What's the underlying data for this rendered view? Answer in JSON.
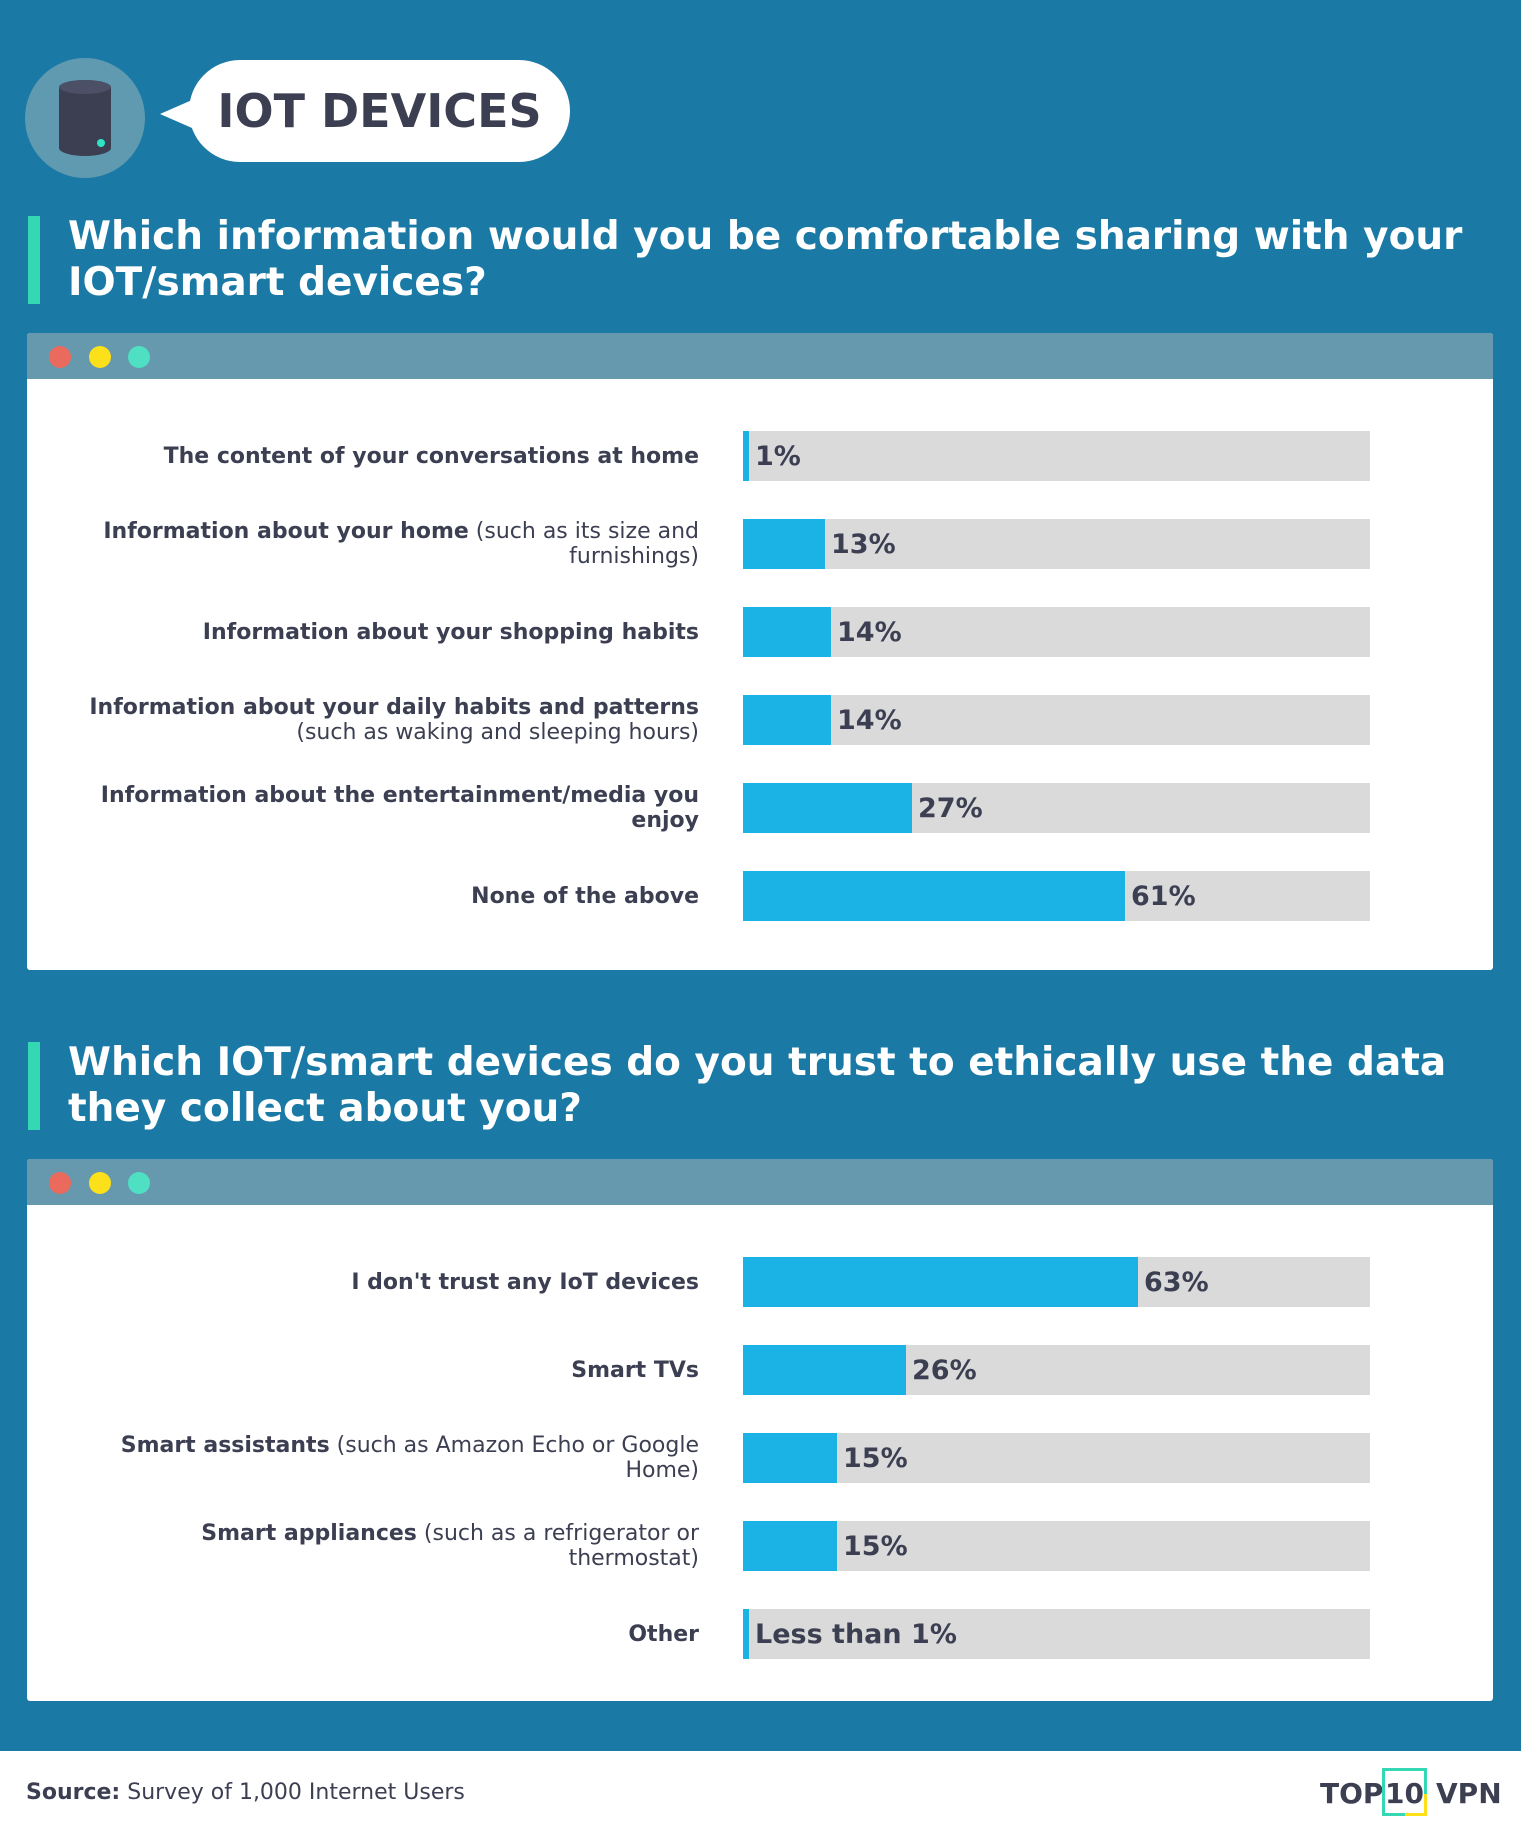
{
  "header": {
    "title": "IOT DEVICES",
    "icon": "smart-speaker-icon"
  },
  "colors": {
    "background": "#1a7aa5",
    "bar": "#1bb3e6",
    "track": "#dadada",
    "accent": "#35d8b5",
    "text": "#3c3f52"
  },
  "chart_data": [
    {
      "type": "bar",
      "orientation": "horizontal",
      "title": "Which information would you be comfortable sharing with your IOT/smart devices?",
      "categories": [
        {
          "bold": "The content of your conversations at home",
          "normal": ""
        },
        {
          "bold": "Information about your home",
          "normal": " (such as its size and furnishings)"
        },
        {
          "bold": "Information about your shopping habits",
          "normal": ""
        },
        {
          "bold": "Information about your daily habits and patterns",
          "normal": " (such as waking and sleeping hours)"
        },
        {
          "bold": "Information about the entertainment/media you enjoy",
          "normal": ""
        },
        {
          "bold": "None of the above",
          "normal": ""
        }
      ],
      "values": [
        1,
        13,
        14,
        14,
        27,
        61
      ],
      "value_labels": [
        "1%",
        "13%",
        "14%",
        "14%",
        "27%",
        "61%"
      ],
      "xlim": [
        0,
        100
      ]
    },
    {
      "type": "bar",
      "orientation": "horizontal",
      "title": "Which IOT/smart devices do you trust to ethically use the data they collect about you?",
      "categories": [
        {
          "bold": "I don't trust any IoT devices",
          "normal": ""
        },
        {
          "bold": "Smart TVs",
          "normal": ""
        },
        {
          "bold": "Smart assistants",
          "normal": " (such as Amazon Echo or Google Home)"
        },
        {
          "bold": "Smart appliances",
          "normal": " (such as a refrigerator or thermostat)"
        },
        {
          "bold": "Other",
          "normal": ""
        }
      ],
      "values": [
        63,
        26,
        15,
        15,
        0.5
      ],
      "value_labels": [
        "63%",
        "26%",
        "15%",
        "15%",
        "Less than 1%"
      ],
      "xlim": [
        0,
        100
      ]
    }
  ],
  "footer": {
    "source_label": "Source:",
    "source_text": " Survey of 1,000 Internet Users",
    "logo_top": "TOP",
    "logo_num": "10",
    "logo_vpn": "VPN"
  }
}
